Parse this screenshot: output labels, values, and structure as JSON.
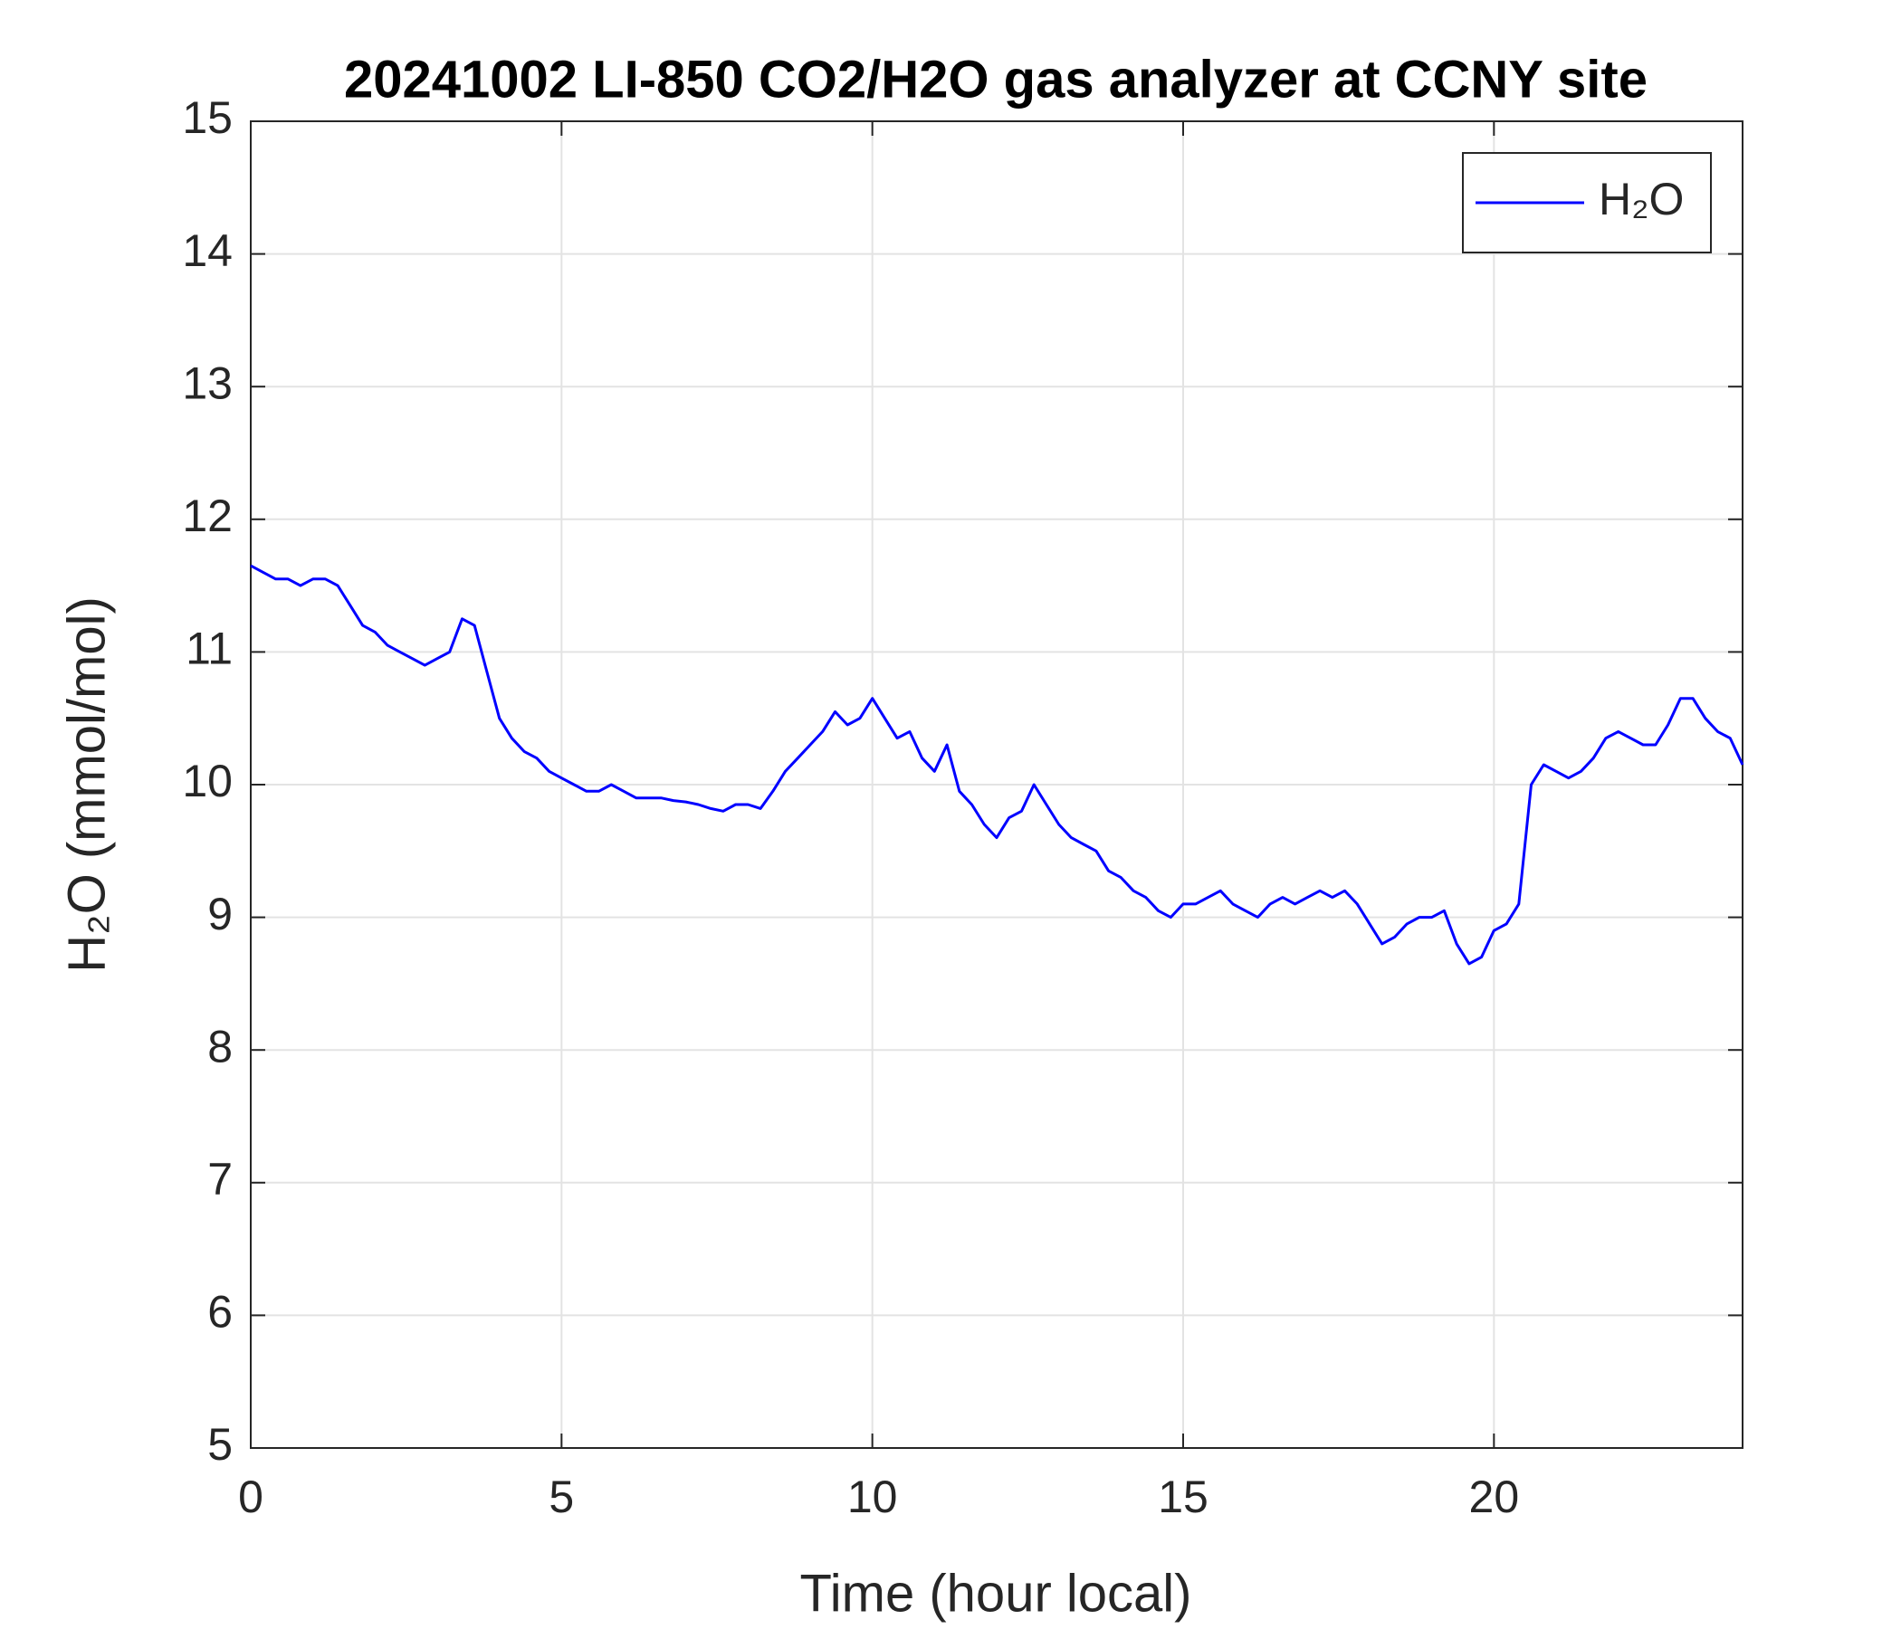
{
  "chart_data": {
    "type": "line",
    "title": "20241002 LI-850 CO2/H2O gas analyzer at CCNY site",
    "xlabel": "Time (hour local)",
    "ylabel": "H₂O (mmol/mol)",
    "xlim": [
      0,
      24
    ],
    "ylim": [
      5,
      15
    ],
    "xticks": [
      0,
      5,
      10,
      15,
      20
    ],
    "yticks": [
      5,
      6,
      7,
      8,
      9,
      10,
      11,
      12,
      13,
      14,
      15
    ],
    "grid": true,
    "legend": "upper right",
    "x": [
      0,
      0.2,
      0.4,
      0.6,
      0.8,
      1,
      1.2,
      1.4,
      1.6,
      1.8,
      2,
      2.2,
      2.4,
      2.6,
      2.8,
      3,
      3.2,
      3.4,
      3.6,
      3.8,
      4,
      4.2,
      4.4,
      4.6,
      4.8,
      5,
      5.2,
      5.4,
      5.6,
      5.8,
      6,
      6.2,
      6.4,
      6.6,
      6.8,
      7,
      7.2,
      7.4,
      7.6,
      7.8,
      8,
      8.2,
      8.4,
      8.6,
      8.8,
      9,
      9.2,
      9.4,
      9.6,
      9.8,
      10,
      10.2,
      10.4,
      10.6,
      10.8,
      11,
      11.2,
      11.4,
      11.6,
      11.8,
      12,
      12.2,
      12.4,
      12.6,
      12.8,
      13,
      13.2,
      13.4,
      13.6,
      13.8,
      14,
      14.2,
      14.4,
      14.6,
      14.8,
      15,
      15.2,
      15.4,
      15.6,
      15.8,
      16,
      16.2,
      16.4,
      16.6,
      16.8,
      17,
      17.2,
      17.4,
      17.6,
      17.8,
      18,
      18.2,
      18.4,
      18.6,
      18.8,
      19,
      19.2,
      19.4,
      19.6,
      19.8,
      20,
      20.2,
      20.4,
      20.6,
      20.8,
      21,
      21.2,
      21.4,
      21.6,
      21.8,
      22,
      22.2,
      22.4,
      22.6,
      22.8,
      23,
      23.2,
      23.4,
      23.6,
      23.8,
      24
    ],
    "series": [
      {
        "name": "H₂O",
        "color": "#0000ff",
        "values": [
          11.65,
          11.6,
          11.55,
          11.55,
          11.5,
          11.55,
          11.55,
          11.5,
          11.35,
          11.2,
          11.15,
          11.05,
          11.0,
          10.95,
          10.9,
          10.95,
          11.0,
          11.25,
          11.2,
          10.85,
          10.5,
          10.35,
          10.25,
          10.2,
          10.1,
          10.05,
          10.0,
          9.95,
          9.95,
          10.0,
          9.95,
          9.9,
          9.9,
          9.9,
          9.88,
          9.87,
          9.85,
          9.82,
          9.8,
          9.85,
          9.85,
          9.82,
          9.95,
          10.1,
          10.2,
          10.3,
          10.4,
          10.55,
          10.45,
          10.5,
          10.65,
          10.5,
          10.35,
          10.4,
          10.2,
          10.1,
          10.3,
          9.95,
          9.85,
          9.7,
          9.6,
          9.75,
          9.8,
          10.0,
          9.85,
          9.7,
          9.6,
          9.55,
          9.5,
          9.35,
          9.3,
          9.2,
          9.15,
          9.05,
          9.0,
          9.1,
          9.1,
          9.15,
          9.2,
          9.1,
          9.05,
          9.0,
          9.1,
          9.15,
          9.1,
          9.15,
          9.2,
          9.15,
          9.2,
          9.1,
          8.95,
          8.8,
          8.85,
          8.95,
          9.0,
          9.0,
          9.05,
          8.8,
          8.65,
          8.7,
          8.9,
          8.95,
          9.1,
          10.0,
          10.15,
          10.1,
          10.05,
          10.1,
          10.2,
          10.35,
          10.4,
          10.35,
          10.3,
          10.3,
          10.45,
          10.65,
          10.65,
          10.5,
          10.4,
          10.35,
          10.15
        ]
      }
    ]
  }
}
